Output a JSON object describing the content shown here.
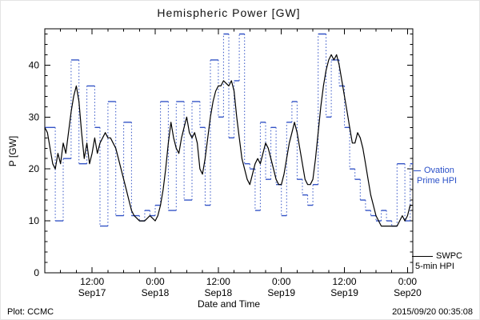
{
  "footer": {
    "plot_credit": "Plot: CCMC",
    "timestamp": "2015/09/20 00:35:08"
  },
  "chart_data": {
    "type": "line",
    "title": "Hemispheric Power [GW]",
    "xlabel": "Date and Time",
    "ylabel": "P [GW]",
    "xlim": [
      0,
      70
    ],
    "ylim": [
      0,
      47
    ],
    "x_axis_note": "hours; t=0 corresponds to ~03:00 Sep17 2015, ticks every 12 h",
    "x_ticks": [
      {
        "t": 9,
        "time": "12:00",
        "date": "Sep17"
      },
      {
        "t": 21,
        "time": "0:00",
        "date": "Sep18"
      },
      {
        "t": 33,
        "time": "12:00",
        "date": "Sep18"
      },
      {
        "t": 45,
        "time": "0:00",
        "date": "Sep19"
      },
      {
        "t": 57,
        "time": "12:00",
        "date": "Sep19"
      },
      {
        "t": 69,
        "time": "0:00",
        "date": "Sep20"
      }
    ],
    "y_ticks": [
      0,
      10,
      20,
      30,
      40
    ],
    "x_minor_step": 3,
    "y_minor_step": 2,
    "grid": false,
    "legend_position": "right-outside",
    "series": [
      {
        "name": "Ovation Prime HPI",
        "style": "step",
        "color": "#3353c6",
        "points": [
          [
            0,
            28
          ],
          [
            2,
            10
          ],
          [
            3.5,
            22
          ],
          [
            5,
            41
          ],
          [
            6.5,
            21
          ],
          [
            8,
            36
          ],
          [
            9.5,
            28
          ],
          [
            10.5,
            9
          ],
          [
            12,
            33
          ],
          [
            13.5,
            11
          ],
          [
            15,
            29
          ],
          [
            16.5,
            11
          ],
          [
            18,
            10
          ],
          [
            19,
            12
          ],
          [
            20,
            11
          ],
          [
            21,
            13
          ],
          [
            22,
            33
          ],
          [
            23.5,
            12
          ],
          [
            25,
            33
          ],
          [
            26.5,
            14
          ],
          [
            28,
            33
          ],
          [
            29.5,
            28
          ],
          [
            30.5,
            13
          ],
          [
            31.5,
            41
          ],
          [
            33,
            30
          ],
          [
            34,
            46
          ],
          [
            35,
            26
          ],
          [
            36,
            37
          ],
          [
            37,
            46
          ],
          [
            38,
            21
          ],
          [
            39,
            20
          ],
          [
            40,
            12
          ],
          [
            41,
            29
          ],
          [
            42,
            18
          ],
          [
            43,
            28
          ],
          [
            44,
            17
          ],
          [
            45,
            11
          ],
          [
            46,
            29
          ],
          [
            47,
            33
          ],
          [
            48,
            18
          ],
          [
            49,
            15
          ],
          [
            50,
            13
          ],
          [
            51,
            17
          ],
          [
            52,
            46
          ],
          [
            53.5,
            30
          ],
          [
            54.5,
            41
          ],
          [
            56,
            36
          ],
          [
            57,
            28
          ],
          [
            58,
            20
          ],
          [
            59,
            18
          ],
          [
            60,
            14
          ],
          [
            61,
            12
          ],
          [
            62,
            11
          ],
          [
            63,
            10
          ],
          [
            64,
            12
          ],
          [
            65,
            10
          ],
          [
            66,
            9
          ],
          [
            67,
            21
          ],
          [
            68.5,
            10
          ],
          [
            69.5,
            21
          ]
        ]
      },
      {
        "name": "SWPC 5-min HPI",
        "style": "line",
        "color": "#000000",
        "points": [
          [
            0,
            28
          ],
          [
            0.5,
            27
          ],
          [
            1,
            24
          ],
          [
            1.5,
            21
          ],
          [
            2,
            20
          ],
          [
            2.5,
            23
          ],
          [
            3,
            21
          ],
          [
            3.5,
            25
          ],
          [
            4,
            23
          ],
          [
            4.5,
            27
          ],
          [
            5,
            31
          ],
          [
            5.5,
            34
          ],
          [
            6,
            36
          ],
          [
            6.5,
            33
          ],
          [
            7,
            27
          ],
          [
            7.5,
            22
          ],
          [
            8,
            25
          ],
          [
            8.5,
            21
          ],
          [
            9,
            23
          ],
          [
            9.5,
            26
          ],
          [
            10,
            23
          ],
          [
            10.5,
            25
          ],
          [
            11,
            26
          ],
          [
            11.5,
            27
          ],
          [
            12,
            26
          ],
          [
            12.5,
            26
          ],
          [
            13,
            25
          ],
          [
            13.5,
            24
          ],
          [
            14,
            22
          ],
          [
            14.5,
            20
          ],
          [
            15,
            18
          ],
          [
            15.5,
            16
          ],
          [
            16,
            14
          ],
          [
            16.5,
            12
          ],
          [
            17,
            11
          ],
          [
            18,
            10
          ],
          [
            19,
            10
          ],
          [
            20,
            11
          ],
          [
            21,
            10
          ],
          [
            21.5,
            11
          ],
          [
            22,
            13
          ],
          [
            22.5,
            16
          ],
          [
            23,
            20
          ],
          [
            23.5,
            25
          ],
          [
            24,
            29
          ],
          [
            24.5,
            26
          ],
          [
            25,
            24
          ],
          [
            25.5,
            23
          ],
          [
            26,
            26
          ],
          [
            26.5,
            28
          ],
          [
            27,
            30
          ],
          [
            27.5,
            27
          ],
          [
            28,
            26
          ],
          [
            28.5,
            27
          ],
          [
            29,
            25
          ],
          [
            29.5,
            20
          ],
          [
            30,
            19
          ],
          [
            30.5,
            22
          ],
          [
            31,
            26
          ],
          [
            31.5,
            30
          ],
          [
            32,
            33
          ],
          [
            32.5,
            35
          ],
          [
            33,
            36
          ],
          [
            33.5,
            36
          ],
          [
            34,
            37
          ],
          [
            35,
            36
          ],
          [
            35.5,
            37
          ],
          [
            36,
            35
          ],
          [
            36.5,
            30
          ],
          [
            37,
            26
          ],
          [
            37.5,
            22
          ],
          [
            38,
            20
          ],
          [
            38.5,
            18
          ],
          [
            39,
            17
          ],
          [
            39.5,
            19
          ],
          [
            40,
            21
          ],
          [
            40.5,
            22
          ],
          [
            41,
            21
          ],
          [
            41.5,
            23
          ],
          [
            42,
            25
          ],
          [
            42.5,
            24
          ],
          [
            43,
            22
          ],
          [
            43.5,
            20
          ],
          [
            44,
            18
          ],
          [
            44.5,
            17
          ],
          [
            45,
            17
          ],
          [
            45.5,
            19
          ],
          [
            46,
            22
          ],
          [
            46.5,
            25
          ],
          [
            47,
            27
          ],
          [
            47.5,
            29
          ],
          [
            48,
            27
          ],
          [
            48.5,
            24
          ],
          [
            49,
            21
          ],
          [
            49.5,
            18
          ],
          [
            50,
            17
          ],
          [
            50.5,
            17
          ],
          [
            51,
            18
          ],
          [
            51.5,
            22
          ],
          [
            52,
            27
          ],
          [
            52.5,
            32
          ],
          [
            53,
            36
          ],
          [
            53.5,
            39
          ],
          [
            54,
            41
          ],
          [
            54.5,
            42
          ],
          [
            55,
            41
          ],
          [
            55.5,
            42
          ],
          [
            56,
            40
          ],
          [
            56.5,
            37
          ],
          [
            57,
            34
          ],
          [
            57.5,
            31
          ],
          [
            58,
            28
          ],
          [
            58.5,
            25
          ],
          [
            59,
            25
          ],
          [
            59.5,
            27
          ],
          [
            60,
            26
          ],
          [
            60.5,
            24
          ],
          [
            61,
            21
          ],
          [
            61.5,
            18
          ],
          [
            62,
            15
          ],
          [
            62.5,
            13
          ],
          [
            63,
            11
          ],
          [
            63.5,
            10
          ],
          [
            64,
            9
          ],
          [
            65,
            9
          ],
          [
            66,
            9
          ],
          [
            67,
            9
          ],
          [
            67.5,
            10
          ],
          [
            68,
            11
          ],
          [
            68.5,
            10
          ],
          [
            69,
            11
          ],
          [
            69.5,
            13
          ],
          [
            70,
            13
          ]
        ]
      }
    ],
    "legend": [
      {
        "line1": "Ovation",
        "line2": "Prime HPI",
        "color": "#2a50c8"
      },
      {
        "line1": "SWPC",
        "line2": "5-min HPI",
        "color": "#000000"
      }
    ]
  }
}
